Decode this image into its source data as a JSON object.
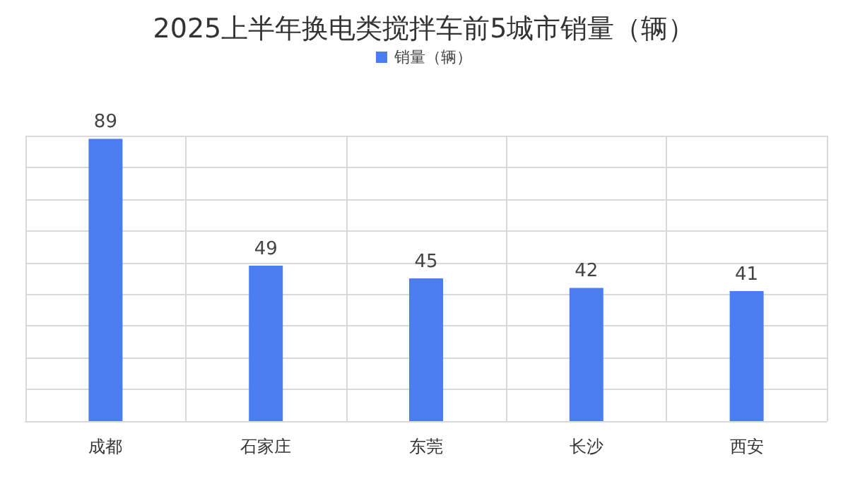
{
  "chart_data": {
    "type": "bar",
    "title": "2025上半年换电类搅拌车前5城市销量（辆）",
    "categories": [
      "成都",
      "石家庄",
      "东莞",
      "长沙",
      "西安"
    ],
    "series": [
      {
        "name": "销量（辆）",
        "color": "#4a7ef0",
        "values": [
          89,
          49,
          45,
          42,
          41
        ]
      }
    ],
    "data_labels": true,
    "grid": true,
    "legend": "top"
  }
}
